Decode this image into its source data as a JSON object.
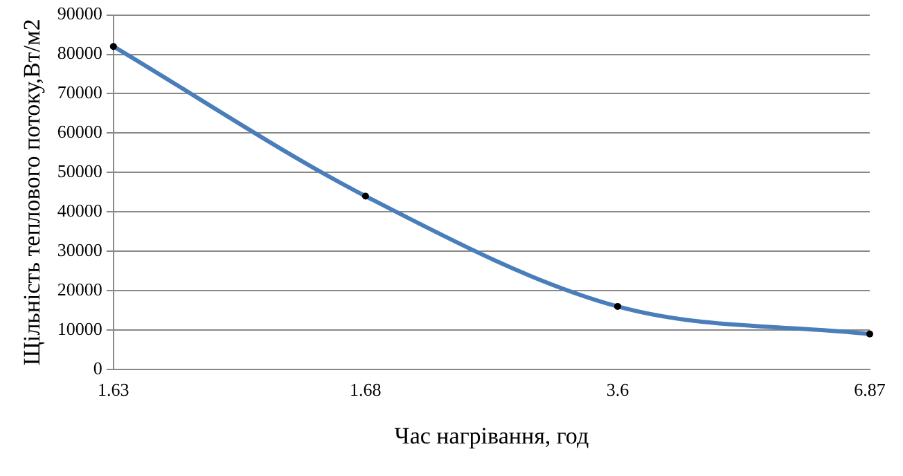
{
  "chart_data": {
    "type": "line",
    "xlabel": "Час нагрівання, год",
    "ylabel": "Щільність теплового потоку,Вт/м2",
    "categories": [
      "1.63",
      "1.68",
      "3.6",
      "6.87"
    ],
    "series": [
      {
        "color": "#4a7ebb",
        "values": [
          82000,
          44000,
          16000,
          9000
        ]
      }
    ],
    "ylim": [
      0,
      90000
    ],
    "yticks": [
      0,
      10000,
      20000,
      30000,
      40000,
      50000,
      60000,
      70000,
      80000,
      90000
    ],
    "grid": "y",
    "legend": false,
    "marker": "circle",
    "line_style": "solid"
  }
}
